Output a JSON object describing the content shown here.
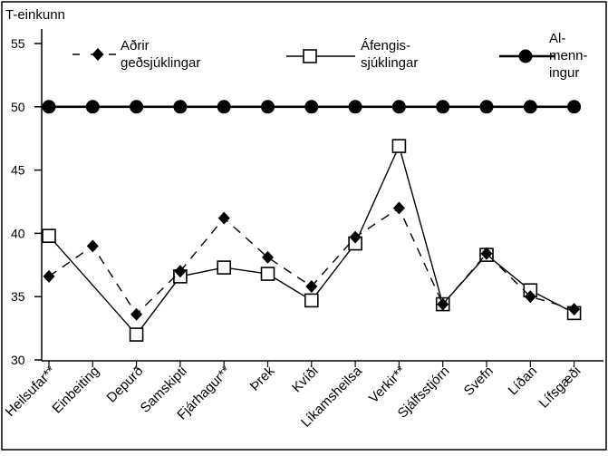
{
  "chart_data": {
    "type": "line",
    "ylabel": "T-einkunn",
    "ylim": [
      30,
      55
    ],
    "yticks": [
      30,
      35,
      40,
      45,
      50,
      55
    ],
    "ytick_labels": [
      "30",
      "35",
      "40",
      "45",
      "50",
      "55"
    ],
    "categories": [
      "Heilsufar**",
      "Einbeiting",
      "Depurð",
      "Samskipti",
      "Fjárhagur**",
      "Þrek",
      "Kvíði",
      "Líkamsheilsa",
      "Verkir**",
      "Sjálfsstjórn",
      "Svefn",
      "Líðan",
      "Lífsgæði"
    ],
    "grid": false,
    "legend_position": "top",
    "series": [
      {
        "name": "Aðrir geðsjúklingar",
        "legend_lines": [
          "Aðrir",
          "geðsjúklingar"
        ],
        "line_style": "dashed",
        "marker": "diamond-filled",
        "values": [
          36.6,
          39.0,
          33.6,
          37.0,
          41.2,
          38.1,
          35.8,
          39.7,
          42.0,
          34.4,
          38.4,
          35.0,
          34.0
        ]
      },
      {
        "name": "Áfengissjúklingar",
        "legend_lines": [
          "Áfengis-",
          "sjúklingar"
        ],
        "line_style": "solid",
        "marker": "square-open",
        "values": [
          39.8,
          null,
          32.0,
          36.6,
          37.3,
          36.8,
          34.7,
          39.2,
          46.9,
          34.4,
          38.3,
          35.5,
          33.7
        ]
      },
      {
        "name": "Almenningur",
        "legend_lines": [
          "Al-",
          "menn-",
          "ingur"
        ],
        "line_style": "solid-bold",
        "marker": "circle-filled",
        "values": [
          50,
          50,
          50,
          50,
          50,
          50,
          50,
          50,
          50,
          50,
          50,
          50,
          50
        ]
      }
    ],
    "colors": {
      "ink": "#000000",
      "background": "#ffffff"
    }
  }
}
